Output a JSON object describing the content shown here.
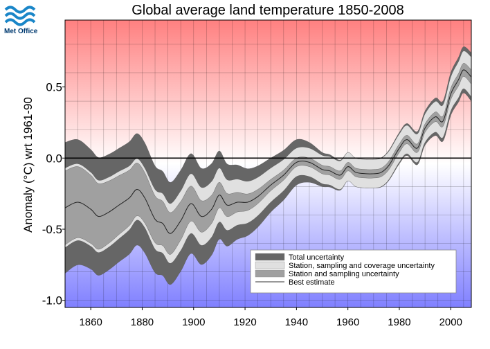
{
  "brand": {
    "logo_text": "Met Office",
    "logo_color": "#1a86c8"
  },
  "chart_data": {
    "type": "area",
    "title": "Global average land temperature 1850-2008",
    "xlabel": "",
    "ylabel": "Anomaly (°C) wrt 1961-90",
    "xlim": [
      1850,
      2008
    ],
    "ylim": [
      -1.05,
      0.97
    ],
    "x_ticks": [
      1860,
      1880,
      1900,
      1920,
      1940,
      1960,
      1980,
      2000
    ],
    "y_ticks": [
      0.5,
      0.0,
      -0.5,
      -1.0
    ],
    "y_tick_labels": [
      "0.5",
      "0.0",
      "-0.5",
      "-1.0"
    ],
    "grid": true,
    "background_gradient": {
      "top": "#ff8080",
      "middle": "#ffffff",
      "bottom": "#8080ff"
    },
    "legend_position": "bottom-right",
    "legend": [
      {
        "label": "Total uncertainty",
        "color": "#666666",
        "kind": "band"
      },
      {
        "label": "Station, sampling and coverage uncertainty",
        "color": "#e0e0e0",
        "kind": "band"
      },
      {
        "label": "Station and sampling uncertainty",
        "color": "#a0a0a0",
        "kind": "band"
      },
      {
        "label": "Best estimate",
        "color": "#333333",
        "kind": "line"
      }
    ],
    "series": [
      {
        "name": "Best estimate",
        "x": [
          1850,
          1855,
          1860,
          1863,
          1867,
          1871,
          1875,
          1878,
          1881,
          1885,
          1888,
          1891,
          1895,
          1899,
          1903,
          1907,
          1910,
          1913,
          1917,
          1921,
          1925,
          1930,
          1935,
          1940,
          1945,
          1950,
          1953,
          1957,
          1960,
          1963,
          1967,
          1970,
          1973,
          1976,
          1980,
          1983,
          1987,
          1990,
          1994,
          1997,
          2000,
          2003,
          2005,
          2008
        ],
        "y": [
          -0.35,
          -0.31,
          -0.36,
          -0.41,
          -0.38,
          -0.33,
          -0.28,
          -0.22,
          -0.28,
          -0.43,
          -0.46,
          -0.53,
          -0.44,
          -0.32,
          -0.41,
          -0.36,
          -0.26,
          -0.33,
          -0.31,
          -0.31,
          -0.27,
          -0.19,
          -0.12,
          -0.03,
          -0.03,
          -0.08,
          -0.09,
          -0.12,
          -0.06,
          -0.1,
          -0.11,
          -0.11,
          -0.1,
          -0.05,
          0.07,
          0.13,
          0.07,
          0.21,
          0.29,
          0.26,
          0.45,
          0.55,
          0.62,
          0.57
        ]
      },
      {
        "name": "Station and sampling uncertainty",
        "x": [
          1850,
          1860,
          1870,
          1880,
          1890,
          1900,
          1910,
          1920,
          1930,
          1940,
          1950,
          1960,
          1970,
          1980,
          1990,
          2000,
          2008
        ],
        "halfwidth": [
          0.26,
          0.24,
          0.21,
          0.18,
          0.15,
          0.12,
          0.09,
          0.06,
          0.04,
          0.03,
          0.03,
          0.03,
          0.03,
          0.03,
          0.03,
          0.04,
          0.05
        ]
      },
      {
        "name": "Station, sampling and coverage uncertainty",
        "x": [
          1850,
          1860,
          1870,
          1880,
          1890,
          1900,
          1910,
          1920,
          1930,
          1940,
          1950,
          1960,
          1970,
          1980,
          1990,
          2000,
          2008
        ],
        "halfwidth": [
          0.28,
          0.26,
          0.24,
          0.21,
          0.21,
          0.21,
          0.19,
          0.15,
          0.12,
          0.1,
          0.1,
          0.1,
          0.1,
          0.1,
          0.1,
          0.12,
          0.14
        ]
      },
      {
        "name": "Total uncertainty",
        "x": [
          1850,
          1860,
          1870,
          1880,
          1890,
          1900,
          1910,
          1920,
          1930,
          1940,
          1950,
          1960,
          1970,
          1980,
          1990,
          2000,
          2008
        ],
        "halfwidth": [
          0.46,
          0.42,
          0.4,
          0.39,
          0.36,
          0.35,
          0.31,
          0.24,
          0.19,
          0.16,
          0.12,
          0.1,
          0.1,
          0.11,
          0.12,
          0.15,
          0.17
        ]
      }
    ]
  }
}
